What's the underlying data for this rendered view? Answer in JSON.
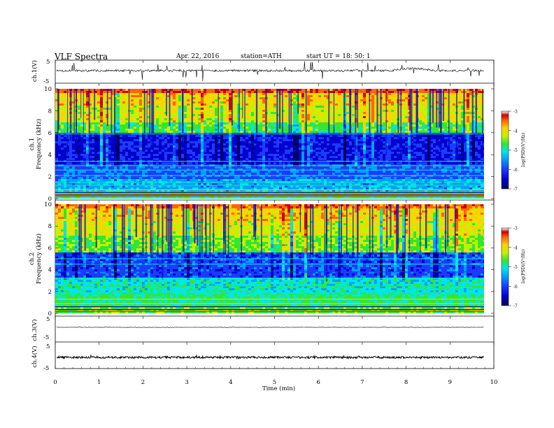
{
  "header": {
    "title": "VLF  Spectra",
    "date": "Apr. 22, 2016",
    "station": "station=ATH",
    "start_ut": "start  UT =    18: 50: 1"
  },
  "chart_data": [
    {
      "type": "line",
      "ylabel": "ch.1(V)",
      "ylim": [
        -5,
        5
      ],
      "yticks": [
        "5",
        "-5"
      ],
      "description_level": "noisy waveform centered near 0 V with spikes"
    },
    {
      "type": "heatmap",
      "ylabel_line1": "ch.1",
      "ylabel_line2": "Frequency  (kHz)",
      "ylim": [
        0,
        10
      ],
      "yticks": [
        "0",
        "2",
        "4",
        "6",
        "8",
        "10"
      ],
      "colorbar": {
        "label": "log(PSD)(V²/Hz)",
        "range": [
          -7,
          -3
        ],
        "ticks": [
          "-3",
          "-4",
          "-5",
          "-6",
          "-7"
        ]
      }
    },
    {
      "type": "heatmap",
      "ylabel_line1": "ch.2",
      "ylabel_line2": "Frequency  (kHz)",
      "ylim": [
        0,
        10
      ],
      "yticks": [
        "0",
        "2",
        "4",
        "6",
        "8",
        "10"
      ],
      "colorbar": {
        "label": "log(PSD)(V²/Hz)",
        "range": [
          -7,
          -3
        ],
        "ticks": [
          "-3",
          "-4",
          "-5",
          "-6",
          "-7"
        ]
      }
    },
    {
      "type": "line",
      "ylabel": "ch.3(V)",
      "ylim": [
        -5,
        5
      ],
      "yticks": [
        "5",
        "-5"
      ]
    },
    {
      "type": "line",
      "ylabel": "ch.4(V)",
      "ylim": [
        -5,
        5
      ],
      "yticks": [
        "5",
        "-5"
      ]
    }
  ],
  "xaxis": {
    "label": "Time  (min)",
    "range": [
      0,
      10
    ],
    "ticks": [
      "0",
      "1",
      "2",
      "3",
      "4",
      "5",
      "6",
      "7",
      "8",
      "9",
      "10"
    ]
  },
  "colors": {
    "colormap": [
      "#000066",
      "#0000cc",
      "#1a3cff",
      "#00a0ff",
      "#00e6e6",
      "#33e633",
      "#c8f000",
      "#ffd200",
      "#ff6600",
      "#cc0000",
      "#ffffff"
    ]
  }
}
